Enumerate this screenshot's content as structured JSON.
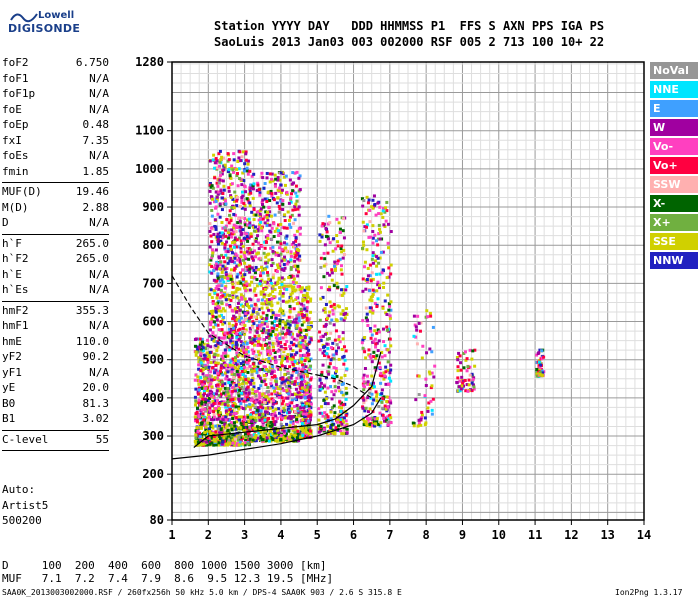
{
  "logo": {
    "line1": "Lowell",
    "line2": "DIGISONDE"
  },
  "header": {
    "line1": "Station YYYY DAY   DDD HHMMSS P1  FFS S AXN PPS IGA PS",
    "line2": "SaoLuis 2013 Jan03 003 002000 RSF 005 2 713 100 10+ 22"
  },
  "params": {
    "group1": [
      {
        "name": "foF2",
        "value": "6.750"
      },
      {
        "name": "foF1",
        "value": "N/A"
      },
      {
        "name": "foF1p",
        "value": "N/A"
      },
      {
        "name": "foE",
        "value": "N/A"
      },
      {
        "name": "foEp",
        "value": "0.48"
      },
      {
        "name": "fxI",
        "value": "7.35"
      },
      {
        "name": "foEs",
        "value": "N/A"
      },
      {
        "name": "fmin",
        "value": "1.85"
      }
    ],
    "group2": [
      {
        "name": "MUF(D)",
        "value": "19.46"
      },
      {
        "name": "M(D)",
        "value": "2.88"
      },
      {
        "name": "D",
        "value": "N/A"
      }
    ],
    "group3": [
      {
        "name": "h`F",
        "value": "265.0"
      },
      {
        "name": "h`F2",
        "value": "265.0"
      },
      {
        "name": "h`E",
        "value": "N/A"
      },
      {
        "name": "h`Es",
        "value": "N/A"
      }
    ],
    "group4": [
      {
        "name": "hmF2",
        "value": "355.3"
      },
      {
        "name": "hmF1",
        "value": "N/A"
      },
      {
        "name": "hmE",
        "value": "110.0"
      },
      {
        "name": "yF2",
        "value": "90.2"
      },
      {
        "name": "yF1",
        "value": "N/A"
      },
      {
        "name": "yE",
        "value": "20.0"
      },
      {
        "name": "B0",
        "value": "81.3"
      },
      {
        "name": "B1",
        "value": "3.02"
      }
    ],
    "group5": [
      {
        "name": "C-level",
        "value": "55"
      }
    ]
  },
  "auto": {
    "line1": "Auto:",
    "line2": "Artist5",
    "line3": "500200"
  },
  "dmuf": {
    "line1": "D     100  200  400  600  800 1000 1500 3000 [km]",
    "line2": "MUF   7.1  7.2  7.4  7.9  8.6  9.5 12.3 19.5 [MHz]"
  },
  "footer": {
    "left": "SAA0K_2013003002000.RSF / 260fx256h 50 kHz 5.0 km / DPS-4 SAA0K 903 / 2.6 S 315.8 E",
    "right": "Ion2Png 1.3.17"
  },
  "legend": [
    {
      "label": "NoVal",
      "bg": "#969696",
      "fg": "#ffffff"
    },
    {
      "label": "NNE",
      "bg": "#00e5ff",
      "fg": "#ffffff"
    },
    {
      "label": "E",
      "bg": "#3fa0ff",
      "fg": "#ffffff"
    },
    {
      "label": "W",
      "bg": "#a000a0",
      "fg": "#ffffff"
    },
    {
      "label": "Vo-",
      "bg": "#ff40c0",
      "fg": "#ffffff"
    },
    {
      "label": "Vo+",
      "bg": "#ff0040",
      "fg": "#ffffff"
    },
    {
      "label": "SSW",
      "bg": "#ffb0b0",
      "fg": "#ffffff"
    },
    {
      "label": "X-",
      "bg": "#006400",
      "fg": "#ffffff"
    },
    {
      "label": "X+",
      "bg": "#70b040",
      "fg": "#ffffff"
    },
    {
      "label": "SSE",
      "bg": "#d0d000",
      "fg": "#ffffff"
    },
    {
      "label": "NNW",
      "bg": "#2020c0",
      "fg": "#ffffff"
    }
  ],
  "chart_data": {
    "type": "scatter",
    "x_ticks": [
      "1",
      "2",
      "3",
      "4",
      "5",
      "6",
      "7",
      "8",
      "9",
      "10",
      "11",
      "12",
      "13",
      "14"
    ],
    "y_ticks": [
      "80",
      "200",
      "300",
      "400",
      "500",
      "600",
      "700",
      "800",
      "900",
      "1000",
      "1100",
      "1280"
    ],
    "xlim": [
      1,
      14
    ],
    "ylim": [
      80,
      1280
    ],
    "grid": true,
    "legend_placement": "right",
    "point_clusters": [
      {
        "x_range": [
          1.6,
          2.0
        ],
        "y_range": [
          280,
          560
        ],
        "density": "medium"
      },
      {
        "x_range": [
          2.0,
          3.1
        ],
        "y_range": [
          280,
          1050
        ],
        "density": "high"
      },
      {
        "x_range": [
          3.1,
          4.5
        ],
        "y_range": [
          290,
          1000
        ],
        "density": "high"
      },
      {
        "x_range": [
          4.5,
          4.8
        ],
        "y_range": [
          300,
          700
        ],
        "density": "medium"
      },
      {
        "x_range": [
          5.0,
          5.8
        ],
        "y_range": [
          310,
          880
        ],
        "density": "medium"
      },
      {
        "x_range": [
          6.2,
          7.0
        ],
        "y_range": [
          330,
          940
        ],
        "density": "medium"
      },
      {
        "x_range": [
          7.6,
          8.2
        ],
        "y_range": [
          330,
          640
        ],
        "density": "low"
      },
      {
        "x_range": [
          8.8,
          9.3
        ],
        "y_range": [
          420,
          530
        ],
        "density": "low"
      },
      {
        "x_range": [
          11.0,
          11.2
        ],
        "y_range": [
          460,
          530
        ],
        "density": "low"
      }
    ],
    "curves": [
      {
        "style": "solid",
        "x": [
          1.0,
          2.0,
          3.0,
          4.0,
          5.0,
          6.0,
          6.5,
          6.75
        ],
        "y": [
          240,
          250,
          265,
          280,
          300,
          330,
          360,
          400
        ]
      },
      {
        "style": "solid",
        "x": [
          1.6,
          2.0,
          3.0,
          4.0,
          5.0,
          5.5,
          6.0,
          6.5,
          6.75
        ],
        "y": [
          270,
          300,
          310,
          320,
          330,
          345,
          380,
          430,
          520
        ]
      },
      {
        "style": "dashed",
        "x": [
          1.0,
          1.5,
          2.0,
          3.0,
          4.0,
          5.0,
          5.5,
          6.0,
          6.5
        ],
        "y": [
          720,
          640,
          570,
          510,
          480,
          460,
          450,
          430,
          400
        ]
      }
    ]
  }
}
